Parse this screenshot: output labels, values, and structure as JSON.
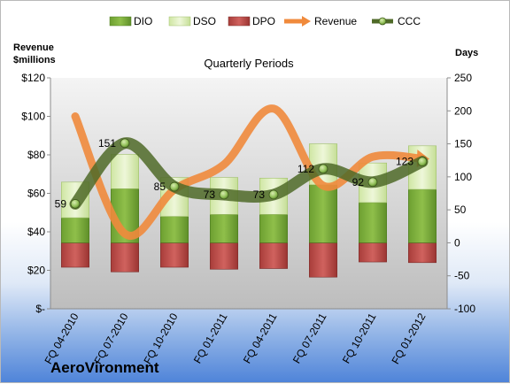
{
  "company": "AeroVironment",
  "chart_data": {
    "type": "bar",
    "subtitle": "Quarterly Periods",
    "categories": [
      "FQ 04-2010",
      "FQ 07-2010",
      "FQ 10-2010",
      "FQ 01-2011",
      "FQ 04-2011",
      "FQ 07-2011",
      "FQ 10-2011",
      "FQ 01-2012"
    ],
    "y_left": {
      "label_line1": "Revenue",
      "label_line2": "$millions",
      "ylim": [
        0,
        120
      ],
      "ticks": [
        0,
        20,
        40,
        60,
        80,
        100,
        120
      ],
      "tick_labels": [
        "$-",
        "$20",
        "$40",
        "$60",
        "$80",
        "$100",
        "$120"
      ]
    },
    "y_right": {
      "label": "Days",
      "ylim": [
        -100,
        250
      ],
      "ticks": [
        -100,
        -50,
        0,
        50,
        100,
        150,
        200,
        250
      ],
      "tick_labels": [
        "-100",
        "-50",
        "0",
        "50",
        "100",
        "150",
        "200",
        "250"
      ]
    },
    "legend": [
      {
        "name": "DIO",
        "type": "bar",
        "color": "#76a83a"
      },
      {
        "name": "DSO",
        "type": "bar",
        "color": "#d8ecb0"
      },
      {
        "name": "DPO",
        "type": "bar",
        "color": "#c0504d"
      },
      {
        "name": "Revenue",
        "type": "line",
        "color": "#f08a3c"
      },
      {
        "name": "CCC",
        "type": "line",
        "color": "#4f6a28"
      }
    ],
    "series": [
      {
        "name": "DIO",
        "axis": "right",
        "values": [
          38,
          82,
          40,
          43,
          43,
          88,
          61,
          81
        ]
      },
      {
        "name": "DSO",
        "axis": "right",
        "values": [
          54,
          52,
          59,
          56,
          55,
          62,
          60,
          66
        ]
      },
      {
        "name": "DPO",
        "axis": "right",
        "values": [
          -37,
          -44,
          -37,
          -40,
          -39,
          -52,
          -29,
          -30
        ]
      },
      {
        "name": "Revenue",
        "axis": "left",
        "values": [
          100,
          39,
          62,
          75,
          104,
          64,
          79,
          78
        ]
      },
      {
        "name": "CCC",
        "axis": "right",
        "values": [
          59,
          151,
          85,
          73,
          73,
          112,
          92,
          123
        ]
      }
    ],
    "data_labels": [
      "59",
      "151",
      "85",
      "73",
      "73",
      "112",
      "92",
      "123"
    ],
    "colors": {
      "plot_bg_top": "#f2f2f2",
      "plot_bg_bottom": "#bfbfbf",
      "dio": "#76a83a",
      "dso": "#d8ecb0",
      "dpo": "#c0504d",
      "revenue": "#f08a3c",
      "ccc": "#4f6a28"
    }
  }
}
